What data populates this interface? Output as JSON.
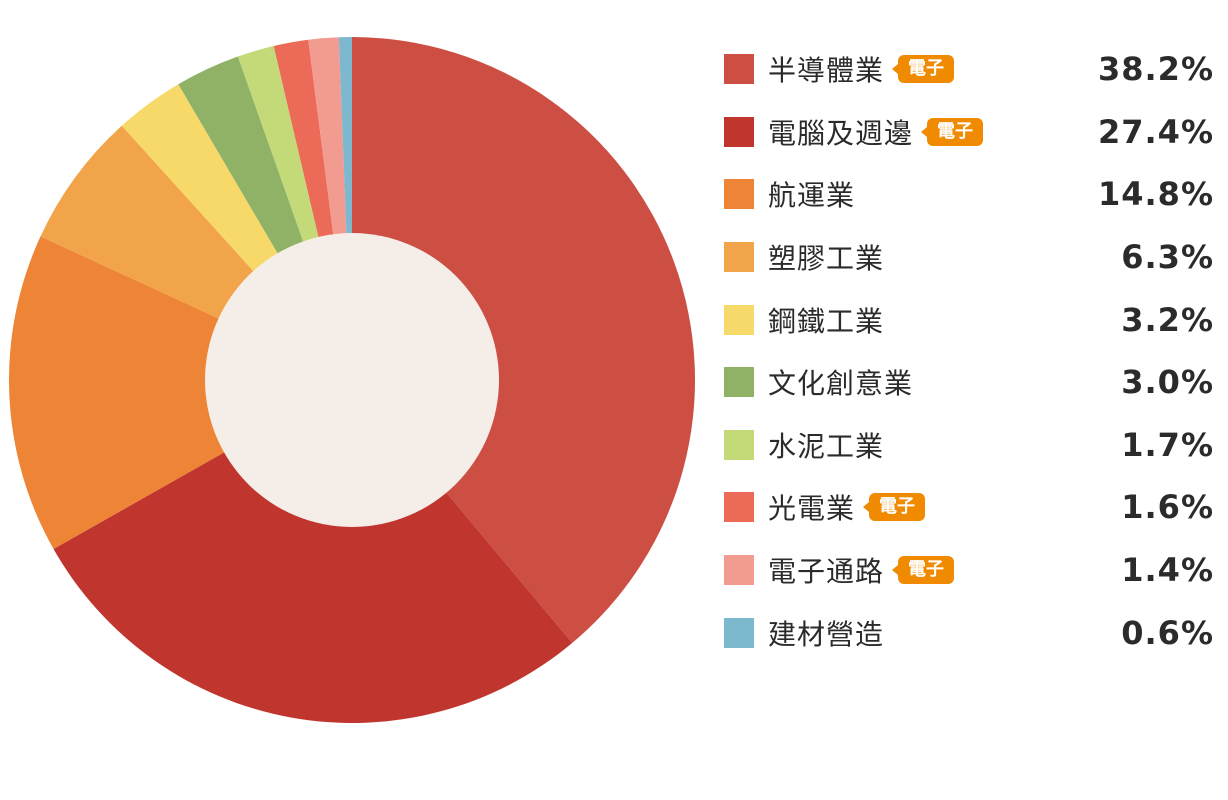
{
  "chart_data": {
    "type": "pie",
    "style": "donut",
    "center_fill": "#f5eee8",
    "slices": [
      {
        "label": "半導體業",
        "value": 38.2,
        "value_text": "38.2%",
        "color": "#cd4f43",
        "tag": "電子"
      },
      {
        "label": "電腦及週邊",
        "value": 27.4,
        "value_text": "27.4%",
        "color": "#c0362f",
        "tag": "電子"
      },
      {
        "label": "航運業",
        "value": 14.8,
        "value_text": "14.8%",
        "color": "#ee8435",
        "tag": ""
      },
      {
        "label": "塑膠工業",
        "value": 6.3,
        "value_text": "6.3%",
        "color": "#f2a44a",
        "tag": ""
      },
      {
        "label": "鋼鐵工業",
        "value": 3.2,
        "value_text": "3.2%",
        "color": "#f7d96a",
        "tag": ""
      },
      {
        "label": "文化創意業",
        "value": 3.0,
        "value_text": "3.0%",
        "color": "#8fb267",
        "tag": ""
      },
      {
        "label": "水泥工業",
        "value": 1.7,
        "value_text": "1.7%",
        "color": "#c4d977",
        "tag": ""
      },
      {
        "label": "光電業",
        "value": 1.6,
        "value_text": "1.6%",
        "color": "#ec6a58",
        "tag": "電子"
      },
      {
        "label": "電子通路",
        "value": 1.4,
        "value_text": "1.4%",
        "color": "#f29b91",
        "tag": "電子"
      },
      {
        "label": "建材營造",
        "value": 0.6,
        "value_text": "0.6%",
        "color": "#7db8cf",
        "tag": ""
      }
    ],
    "legend_position": "right"
  }
}
